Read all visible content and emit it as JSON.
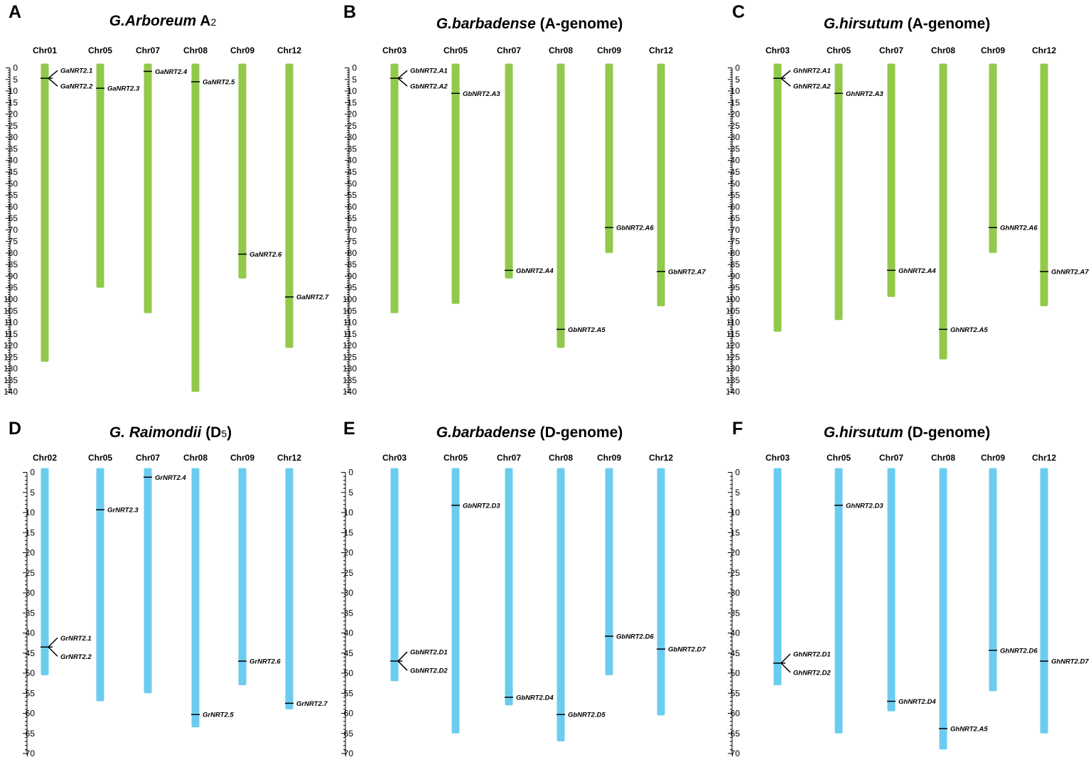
{
  "colors": {
    "a_genome": "#92C94A",
    "d_genome": "#6CCCEF",
    "marker": "#000000"
  },
  "panels": [
    {
      "letter": "A",
      "species": "G.Arboreum",
      "genome_prefix": "A",
      "genome_sub": "2",
      "genome_suffix": "",
      "type": "A",
      "axis": {
        "max": 140,
        "step": 5
      },
      "chromosomes": [
        {
          "name": "Chr01",
          "length": 127,
          "genes": [
            {
              "name": "GaNRT2.1",
              "pos": 4.5,
              "split": "up"
            },
            {
              "name": "GaNRT2.2",
              "pos": 4.5,
              "split": "down"
            }
          ]
        },
        {
          "name": "Chr05",
          "length": 95,
          "genes": [
            {
              "name": "GaNRT2.3",
              "pos": 8.8
            }
          ]
        },
        {
          "name": "Chr07",
          "length": 106,
          "genes": [
            {
              "name": "GaNRT2.4",
              "pos": 1.5
            }
          ]
        },
        {
          "name": "Chr08",
          "length": 140,
          "genes": [
            {
              "name": "GaNRT2.5",
              "pos": 6
            }
          ]
        },
        {
          "name": "Chr09",
          "length": 91,
          "genes": [
            {
              "name": "GaNRT2.6",
              "pos": 80.5
            }
          ]
        },
        {
          "name": "Chr12",
          "length": 121,
          "genes": [
            {
              "name": "GaNRT2.7",
              "pos": 99
            }
          ]
        }
      ]
    },
    {
      "letter": "B",
      "species": "G.barbadense",
      "genome_prefix": "(A-genome)",
      "genome_sub": "",
      "genome_suffix": "",
      "type": "A",
      "axis": {
        "max": 140,
        "step": 5
      },
      "chromosomes": [
        {
          "name": "Chr03",
          "length": 106,
          "genes": [
            {
              "name": "GbNRT2.A1",
              "pos": 4.5,
              "split": "up"
            },
            {
              "name": "GbNRT2.A2",
              "pos": 4.5,
              "split": "down"
            }
          ]
        },
        {
          "name": "Chr05",
          "length": 102,
          "genes": [
            {
              "name": "GbNRT2.A3",
              "pos": 11
            }
          ]
        },
        {
          "name": "Chr07",
          "length": 91,
          "genes": [
            {
              "name": "GbNRT2.A4",
              "pos": 87.5
            }
          ]
        },
        {
          "name": "Chr08",
          "length": 121,
          "genes": [
            {
              "name": "GbNRT2.A5",
              "pos": 113
            }
          ]
        },
        {
          "name": "Chr09",
          "length": 80,
          "genes": [
            {
              "name": "GbNRT2.A6",
              "pos": 69
            }
          ]
        },
        {
          "name": "Chr12",
          "length": 103,
          "genes": [
            {
              "name": "GbNRT2.A7",
              "pos": 88
            }
          ]
        }
      ]
    },
    {
      "letter": "C",
      "species": "G.hirsutum",
      "genome_prefix": "(A-genome)",
      "genome_sub": "",
      "genome_suffix": "",
      "type": "A",
      "axis": {
        "max": 140,
        "step": 5
      },
      "chromosomes": [
        {
          "name": "Chr03",
          "length": 114,
          "genes": [
            {
              "name": "GhNRT2.A1",
              "pos": 4.5,
              "split": "up"
            },
            {
              "name": "GhNRT2.A2",
              "pos": 4.5,
              "split": "down"
            }
          ]
        },
        {
          "name": "Chr05",
          "length": 109,
          "genes": [
            {
              "name": "GhNRT2.A3",
              "pos": 11
            }
          ]
        },
        {
          "name": "Chr07",
          "length": 99,
          "genes": [
            {
              "name": "GhNRT2.A4",
              "pos": 87.5
            }
          ]
        },
        {
          "name": "Chr08",
          "length": 126,
          "genes": [
            {
              "name": "GhNRT2.A5",
              "pos": 113
            }
          ]
        },
        {
          "name": "Chr09",
          "length": 80,
          "genes": [
            {
              "name": "GhNRT2.A6",
              "pos": 69
            }
          ]
        },
        {
          "name": "Chr12",
          "length": 103,
          "genes": [
            {
              "name": "GhNRT2.A7",
              "pos": 88
            }
          ]
        }
      ]
    },
    {
      "letter": "D",
      "species": "G. Raimondii",
      "genome_prefix": "(D",
      "genome_sub": "5",
      "genome_suffix": ")",
      "type": "D",
      "axis": {
        "max": 70,
        "step": 5
      },
      "chromosomes": [
        {
          "name": "Chr02",
          "length": 50.5,
          "genes": [
            {
              "name": "GrNRT2.1",
              "pos": 43.5,
              "split": "up"
            },
            {
              "name": "GrNRT2.2",
              "pos": 43.5,
              "split": "down"
            }
          ]
        },
        {
          "name": "Chr05",
          "length": 57,
          "genes": [
            {
              "name": "GrNRT2.3",
              "pos": 9.3
            }
          ]
        },
        {
          "name": "Chr07",
          "length": 55,
          "genes": [
            {
              "name": "GrNRT2.4",
              "pos": 1.2
            }
          ]
        },
        {
          "name": "Chr08",
          "length": 63.5,
          "genes": [
            {
              "name": "GrNRT2.5",
              "pos": 60.3
            }
          ]
        },
        {
          "name": "Chr09",
          "length": 53,
          "genes": [
            {
              "name": "GrNRT2.6",
              "pos": 47
            }
          ]
        },
        {
          "name": "Chr12",
          "length": 59,
          "genes": [
            {
              "name": "GrNRT2.7",
              "pos": 57.5
            }
          ]
        }
      ]
    },
    {
      "letter": "E",
      "species": "G.barbadense",
      "genome_prefix": "(D-genome)",
      "genome_sub": "",
      "genome_suffix": "",
      "type": "D",
      "axis": {
        "max": 70,
        "step": 5
      },
      "chromosomes": [
        {
          "name": "Chr03",
          "length": 52,
          "genes": [
            {
              "name": "GbNRT2.D1",
              "pos": 47,
              "split": "up"
            },
            {
              "name": "GbNRT2.D2",
              "pos": 47,
              "split": "down"
            }
          ]
        },
        {
          "name": "Chr05",
          "length": 65,
          "genes": [
            {
              "name": "GbNRT2.D3",
              "pos": 8.2
            }
          ]
        },
        {
          "name": "Chr07",
          "length": 58,
          "genes": [
            {
              "name": "GbNRT2.D4",
              "pos": 56
            }
          ]
        },
        {
          "name": "Chr08",
          "length": 67,
          "genes": [
            {
              "name": "GbNRT2.D5",
              "pos": 60.3
            }
          ]
        },
        {
          "name": "Chr09",
          "length": 50.5,
          "genes": [
            {
              "name": "GbNRT2.D6",
              "pos": 40.8
            }
          ]
        },
        {
          "name": "Chr12",
          "length": 60.5,
          "genes": [
            {
              "name": "GbNRT2.D7",
              "pos": 44
            }
          ]
        }
      ]
    },
    {
      "letter": "F",
      "species": "G.hirsutum",
      "genome_prefix": "(D-genome)",
      "genome_sub": "",
      "genome_suffix": "",
      "type": "D",
      "axis": {
        "max": 70,
        "step": 5
      },
      "chromosomes": [
        {
          "name": "Chr03",
          "length": 53,
          "genes": [
            {
              "name": "GhNRT2.D1",
              "pos": 47.5,
              "split": "up"
            },
            {
              "name": "GhNRT2.D2",
              "pos": 47.5,
              "split": "down"
            }
          ]
        },
        {
          "name": "Chr05",
          "length": 65,
          "genes": [
            {
              "name": "GhNRT2.D3",
              "pos": 8.2
            }
          ]
        },
        {
          "name": "Chr07",
          "length": 59.5,
          "genes": [
            {
              "name": "GhNRT2.D4",
              "pos": 57
            }
          ]
        },
        {
          "name": "Chr08",
          "length": 69,
          "genes": [
            {
              "name": "GhNRT2.A5",
              "pos": 63.8
            }
          ]
        },
        {
          "name": "Chr09",
          "length": 54.5,
          "genes": [
            {
              "name": "GhNRT2.D6",
              "pos": 44.3
            }
          ]
        },
        {
          "name": "Chr12",
          "length": 65,
          "genes": [
            {
              "name": "GhNRT2.D7",
              "pos": 47
            }
          ]
        }
      ]
    }
  ]
}
